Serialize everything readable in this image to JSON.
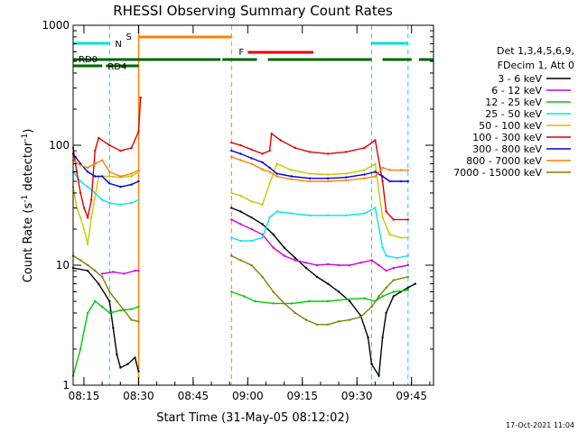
{
  "chart_data": {
    "type": "line",
    "title": "RHESSI Observing Summary Count Rates",
    "xlabel": "Start Time (31-May-05 08:12:02)",
    "ylabel_main": "Count Rate (s",
    "ylabel_sup1": "-1",
    "ylabel_mid": " detector",
    "ylabel_sup2": "-1",
    "ylabel_end": ")",
    "y_scale": "log",
    "ylim": [
      1,
      1000
    ],
    "xlim_minutes": [
      0,
      99
    ],
    "x_ticks": [
      "08:15",
      "08:30",
      "08:45",
      "09:00",
      "09:15",
      "09:30",
      "09:45"
    ],
    "y_ticks": [
      "1",
      "10",
      "100",
      "1000"
    ],
    "timestamp": "17-Oct-2021 11:04",
    "legend": {
      "header1": "Det 1,3,4,5,6,9,",
      "header2": "FDecim 1, Att 0",
      "placement": "right"
    },
    "flags": {
      "N": "N",
      "S": "S",
      "F": "F",
      "RD0": "RD0",
      "RD4": "RD4",
      "saa_minutes": [
        18,
        43.5
      ],
      "night_segments": [
        [
          0,
          10
        ],
        [
          82,
          92
        ]
      ],
      "night_edges": [
        10,
        82,
        92
      ],
      "flare_minutes": [
        48,
        66
      ],
      "decim_segments": [
        [
          0,
          40.5
        ],
        [
          41,
          50.5
        ],
        [
          53.5,
          82
        ],
        [
          85,
          93
        ],
        [
          95,
          99
        ]
      ],
      "rd4_segments": [
        [
          0,
          8
        ],
        [
          9,
          18
        ]
      ]
    },
    "series": [
      {
        "name": "3 - 6 keV",
        "color": "#000000",
        "points": [
          [
            0,
            9.5
          ],
          [
            4,
            9
          ],
          [
            7,
            7
          ],
          [
            10,
            5
          ],
          [
            11,
            3
          ],
          [
            12,
            1.8
          ],
          [
            13,
            1.4
          ],
          [
            15,
            1.5
          ],
          [
            17,
            1.7
          ],
          [
            18,
            1.3
          ],
          [
            43.5,
            30
          ],
          [
            46,
            28
          ],
          [
            49,
            25
          ],
          [
            52,
            22
          ],
          [
            55,
            18
          ],
          [
            58,
            14
          ],
          [
            61,
            11.5
          ],
          [
            64,
            9.5
          ],
          [
            67,
            8
          ],
          [
            70,
            7
          ],
          [
            73,
            6
          ],
          [
            76,
            5
          ],
          [
            79,
            3.8
          ],
          [
            81,
            2.5
          ],
          [
            82,
            1.5
          ],
          [
            84,
            1.2
          ],
          [
            85,
            2.5
          ],
          [
            86,
            4
          ],
          [
            88,
            5.5
          ],
          [
            90,
            6
          ],
          [
            92,
            6.5
          ],
          [
            94,
            7
          ]
        ]
      },
      {
        "name": "6 - 12 keV",
        "color": "#d000d0",
        "points": [
          [
            8,
            8.5
          ],
          [
            11,
            8.8
          ],
          [
            14,
            8.5
          ],
          [
            17,
            9
          ],
          [
            18,
            9
          ],
          [
            43.5,
            24
          ],
          [
            46,
            22
          ],
          [
            49,
            20
          ],
          [
            52,
            18
          ],
          [
            55,
            14
          ],
          [
            58,
            12
          ],
          [
            61,
            11
          ],
          [
            64,
            10.5
          ],
          [
            67,
            10
          ],
          [
            70,
            10.2
          ],
          [
            73,
            10
          ],
          [
            76,
            10
          ],
          [
            79,
            10.5
          ],
          [
            82,
            11
          ],
          [
            84,
            10
          ],
          [
            86,
            9
          ],
          [
            88,
            9.5
          ],
          [
            92,
            10
          ]
        ]
      },
      {
        "name": "12 - 25 keV",
        "color": "#00c800",
        "points": [
          [
            0,
            1.2
          ],
          [
            2,
            2
          ],
          [
            4,
            4
          ],
          [
            6,
            5
          ],
          [
            8,
            4.5
          ],
          [
            10,
            4
          ],
          [
            13,
            4.2
          ],
          [
            16,
            4.3
          ],
          [
            18,
            4.5
          ],
          [
            43.5,
            6
          ],
          [
            47,
            5.5
          ],
          [
            50,
            5
          ],
          [
            55,
            4.8
          ],
          [
            60,
            4.8
          ],
          [
            65,
            5
          ],
          [
            70,
            5
          ],
          [
            75,
            5.2
          ],
          [
            80,
            5.3
          ],
          [
            83,
            5
          ],
          [
            85,
            5.5
          ],
          [
            88,
            6
          ],
          [
            92,
            6.2
          ]
        ]
      },
      {
        "name": "25 - 50 keV",
        "color": "#00e8e8",
        "points": [
          [
            0,
            60
          ],
          [
            2,
            50
          ],
          [
            4,
            45
          ],
          [
            6,
            40
          ],
          [
            8,
            35
          ],
          [
            10,
            33
          ],
          [
            13,
            32
          ],
          [
            16,
            33
          ],
          [
            18,
            35
          ],
          [
            43.5,
            17
          ],
          [
            46,
            16
          ],
          [
            49,
            16
          ],
          [
            52,
            17
          ],
          [
            54,
            25
          ],
          [
            56,
            28
          ],
          [
            60,
            27
          ],
          [
            65,
            26
          ],
          [
            70,
            26
          ],
          [
            75,
            26
          ],
          [
            80,
            27
          ],
          [
            83,
            30
          ],
          [
            85,
            14
          ],
          [
            86,
            12
          ],
          [
            89,
            11.5
          ],
          [
            92,
            12
          ]
        ]
      },
      {
        "name": "50 - 100 keV",
        "color": "#c8c800",
        "points": [
          [
            0,
            45
          ],
          [
            1,
            30
          ],
          [
            2,
            25
          ],
          [
            3,
            20
          ],
          [
            4,
            15
          ],
          [
            5,
            25
          ],
          [
            7,
            55
          ],
          [
            10,
            55
          ],
          [
            13,
            54
          ],
          [
            16,
            55
          ],
          [
            18,
            60
          ],
          [
            43.5,
            40
          ],
          [
            46,
            38
          ],
          [
            49,
            34
          ],
          [
            52,
            32
          ],
          [
            54,
            48
          ],
          [
            56,
            70
          ],
          [
            60,
            62
          ],
          [
            65,
            58
          ],
          [
            70,
            57
          ],
          [
            75,
            58
          ],
          [
            80,
            62
          ],
          [
            83,
            70
          ],
          [
            85,
            25
          ],
          [
            87,
            18
          ],
          [
            90,
            17
          ],
          [
            92,
            17
          ]
        ]
      },
      {
        "name": "100 - 300 keV",
        "color": "#e00000",
        "points": [
          [
            0,
            95
          ],
          [
            1,
            60
          ],
          [
            2,
            40
          ],
          [
            3,
            30
          ],
          [
            4,
            25
          ],
          [
            5,
            35
          ],
          [
            6,
            90
          ],
          [
            7,
            115
          ],
          [
            10,
            100
          ],
          [
            13,
            90
          ],
          [
            16,
            95
          ],
          [
            18,
            130
          ],
          [
            18.5,
            250
          ],
          [
            43.5,
            105
          ],
          [
            46,
            100
          ],
          [
            49,
            92
          ],
          [
            52,
            85
          ],
          [
            54,
            90
          ],
          [
            54.5,
            125
          ],
          [
            57,
            110
          ],
          [
            61,
            95
          ],
          [
            65,
            88
          ],
          [
            70,
            85
          ],
          [
            75,
            88
          ],
          [
            80,
            95
          ],
          [
            83,
            110
          ],
          [
            85,
            50
          ],
          [
            86,
            28
          ],
          [
            88,
            24
          ],
          [
            92,
            24
          ]
        ]
      },
      {
        "name": "300 - 800 keV",
        "color": "#0000e0",
        "points": [
          [
            0,
            85
          ],
          [
            2,
            70
          ],
          [
            4,
            60
          ],
          [
            6,
            55
          ],
          [
            8,
            55
          ],
          [
            10,
            48
          ],
          [
            13,
            45
          ],
          [
            16,
            47
          ],
          [
            18,
            50
          ],
          [
            43.5,
            90
          ],
          [
            46,
            85
          ],
          [
            49,
            78
          ],
          [
            52,
            72
          ],
          [
            54,
            65
          ],
          [
            56,
            58
          ],
          [
            60,
            55
          ],
          [
            65,
            53
          ],
          [
            70,
            53
          ],
          [
            75,
            54
          ],
          [
            80,
            57
          ],
          [
            83,
            60
          ],
          [
            85,
            55
          ],
          [
            87,
            50
          ],
          [
            90,
            50
          ],
          [
            92,
            50
          ]
        ]
      },
      {
        "name": "800 - 7000 keV",
        "color": "#ff8000",
        "points": [
          [
            0,
            75
          ],
          [
            2,
            68
          ],
          [
            4,
            65
          ],
          [
            6,
            70
          ],
          [
            8,
            75
          ],
          [
            10,
            60
          ],
          [
            13,
            55
          ],
          [
            16,
            58
          ],
          [
            18,
            62
          ],
          [
            43.5,
            80
          ],
          [
            46,
            75
          ],
          [
            49,
            70
          ],
          [
            52,
            63
          ],
          [
            54,
            60
          ],
          [
            56,
            55
          ],
          [
            60,
            52
          ],
          [
            65,
            50
          ],
          [
            70,
            50
          ],
          [
            75,
            51
          ],
          [
            80,
            53
          ],
          [
            83,
            55
          ],
          [
            85,
            65
          ],
          [
            87,
            62
          ],
          [
            90,
            62
          ],
          [
            92,
            62
          ]
        ]
      },
      {
        "name": "7000 - 15000 keV",
        "color": "#808000",
        "points": [
          [
            0,
            12
          ],
          [
            2,
            11
          ],
          [
            4,
            10
          ],
          [
            6,
            9
          ],
          [
            8,
            8
          ],
          [
            10,
            6
          ],
          [
            12,
            5
          ],
          [
            14,
            4.2
          ],
          [
            16,
            3.5
          ],
          [
            18,
            3.4
          ],
          [
            43.5,
            12
          ],
          [
            46,
            11
          ],
          [
            49,
            10
          ],
          [
            52,
            8
          ],
          [
            55,
            6
          ],
          [
            58,
            4.8
          ],
          [
            61,
            4
          ],
          [
            64,
            3.5
          ],
          [
            67,
            3.2
          ],
          [
            70,
            3.2
          ],
          [
            73,
            3.4
          ],
          [
            76,
            3.5
          ],
          [
            79,
            3.7
          ],
          [
            82,
            4.5
          ],
          [
            84,
            5.5
          ],
          [
            86,
            6.5
          ],
          [
            88,
            7.5
          ],
          [
            92,
            8
          ]
        ]
      }
    ]
  }
}
